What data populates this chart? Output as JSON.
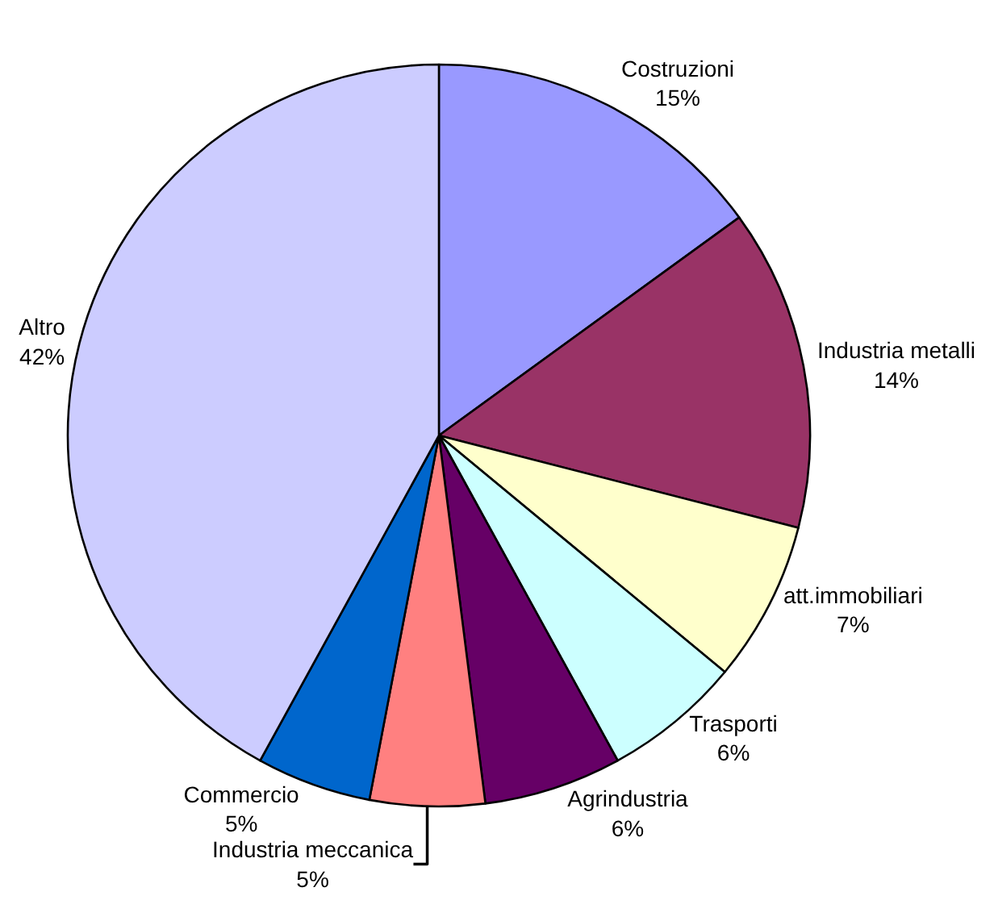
{
  "chart_data": {
    "type": "pie",
    "categories": [
      "Costruzioni",
      "Industria metalli",
      "att.immobiliari",
      "Trasporti",
      "Agrindustria",
      "Industria meccanica",
      "Commercio",
      "Altro"
    ],
    "values": [
      15,
      14,
      7,
      6,
      6,
      5,
      5,
      42
    ],
    "value_labels": [
      "15%",
      "14%",
      "7%",
      "6%",
      "6%",
      "5%",
      "5%",
      "42%"
    ],
    "colors": [
      "#9999ff",
      "#993366",
      "#ffffcc",
      "#ccffff",
      "#660066",
      "#ff8080",
      "#0066cc",
      "#ccccff"
    ],
    "legend": false
  }
}
